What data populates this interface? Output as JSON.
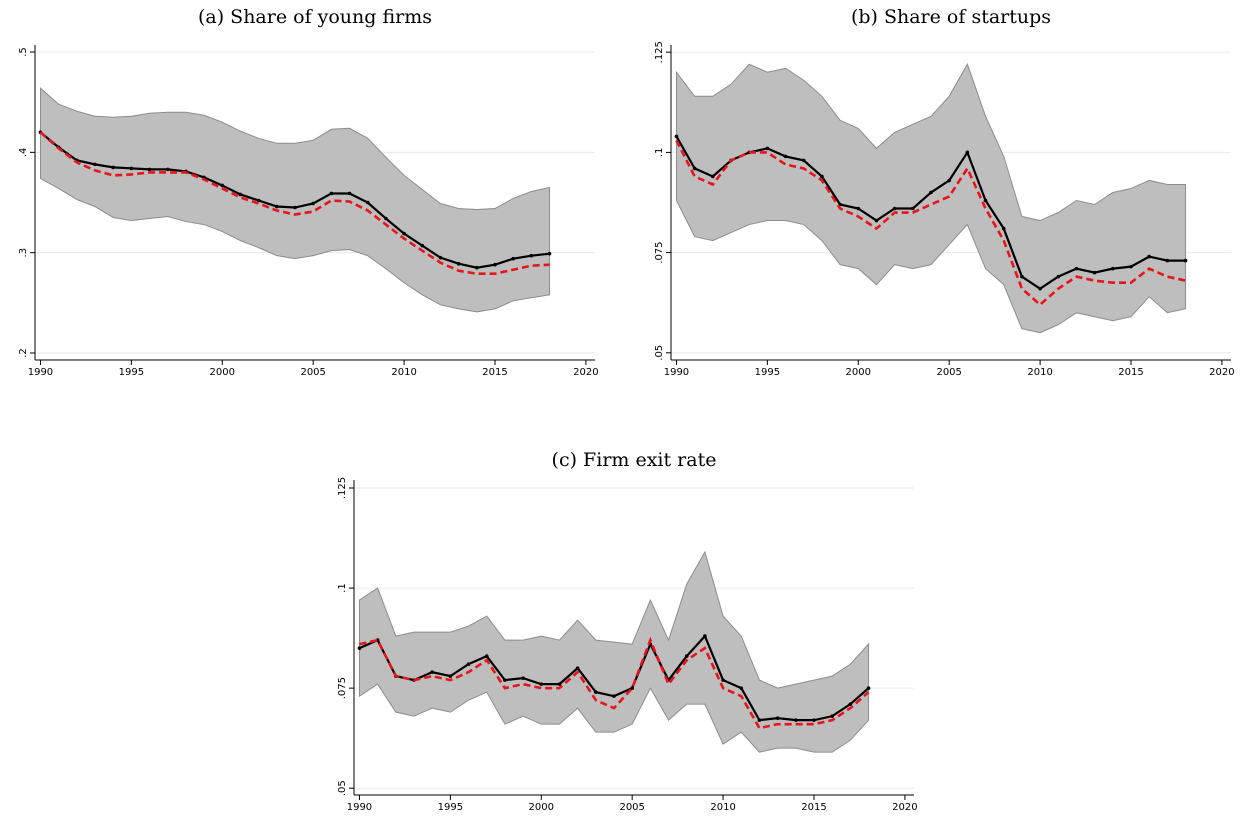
{
  "chart_data": [
    {
      "type": "line",
      "title": "(a) Share of young firms",
      "x": [
        1990,
        1991,
        1992,
        1993,
        1994,
        1995,
        1996,
        1997,
        1998,
        1999,
        2000,
        2001,
        2002,
        2003,
        2004,
        2005,
        2006,
        2007,
        2008,
        2009,
        2010,
        2011,
        2012,
        2013,
        2014,
        2015,
        2016,
        2017,
        2018
      ],
      "band": {
        "color": "#bebebe",
        "edge": "#8c8c8c",
        "upper": [
          0.464,
          0.448,
          0.441,
          0.436,
          0.435,
          0.436,
          0.439,
          0.44,
          0.44,
          0.437,
          0.43,
          0.421,
          0.414,
          0.409,
          0.409,
          0.412,
          0.423,
          0.424,
          0.414,
          0.395,
          0.377,
          0.363,
          0.349,
          0.344,
          0.343,
          0.344,
          0.354,
          0.361,
          0.365
        ],
        "lower": [
          0.374,
          0.364,
          0.353,
          0.346,
          0.335,
          0.332,
          0.334,
          0.336,
          0.331,
          0.328,
          0.321,
          0.312,
          0.305,
          0.297,
          0.294,
          0.297,
          0.302,
          0.303,
          0.297,
          0.284,
          0.27,
          0.258,
          0.248,
          0.244,
          0.241,
          0.244,
          0.252,
          0.255,
          0.258
        ]
      },
      "series": [
        {
          "color": "#000000",
          "markers": true,
          "values": [
            0.42,
            0.405,
            0.392,
            0.388,
            0.385,
            0.384,
            0.383,
            0.383,
            0.381,
            0.375,
            0.367,
            0.358,
            0.352,
            0.346,
            0.345,
            0.349,
            0.359,
            0.359,
            0.35,
            0.334,
            0.319,
            0.307,
            0.295,
            0.289,
            0.285,
            0.288,
            0.294,
            0.297,
            0.299
          ]
        },
        {
          "color": "#e8141b",
          "dashed": true,
          "values": [
            0.42,
            0.404,
            0.39,
            0.382,
            0.377,
            0.378,
            0.38,
            0.38,
            0.38,
            0.373,
            0.364,
            0.355,
            0.349,
            0.342,
            0.338,
            0.341,
            0.352,
            0.351,
            0.342,
            0.328,
            0.314,
            0.302,
            0.29,
            0.282,
            0.279,
            0.279,
            0.283,
            0.287,
            0.288
          ]
        }
      ],
      "xlim": [
        1989.7,
        2020.5
      ],
      "xticks": [
        1990,
        1995,
        2000,
        2005,
        2010,
        2015,
        2020
      ],
      "ylim": [
        0.193,
        0.507
      ],
      "yticks": [
        {
          "value": 0.2,
          "label": ".2"
        },
        {
          "value": 0.3,
          "label": ".3"
        },
        {
          "value": 0.4,
          "label": ".4"
        },
        {
          "value": 0.5,
          "label": ".5"
        }
      ],
      "grid": true
    },
    {
      "type": "line",
      "title": "(b) Share of startups",
      "x": [
        1990,
        1991,
        1992,
        1993,
        1994,
        1995,
        1996,
        1997,
        1998,
        1999,
        2000,
        2001,
        2002,
        2003,
        2004,
        2005,
        2006,
        2007,
        2008,
        2009,
        2010,
        2011,
        2012,
        2013,
        2014,
        2015,
        2016,
        2017,
        2018
      ],
      "band": {
        "color": "#bebebe",
        "edge": "#8c8c8c",
        "upper": [
          0.12,
          0.114,
          0.114,
          0.117,
          0.122,
          0.12,
          0.121,
          0.118,
          0.114,
          0.108,
          0.106,
          0.101,
          0.105,
          0.107,
          0.109,
          0.114,
          0.122,
          0.109,
          0.099,
          0.084,
          0.083,
          0.085,
          0.088,
          0.087,
          0.09,
          0.091,
          0.093,
          0.092,
          0.092
        ],
        "lower": [
          0.088,
          0.079,
          0.078,
          0.08,
          0.082,
          0.083,
          0.083,
          0.082,
          0.078,
          0.072,
          0.071,
          0.067,
          0.072,
          0.071,
          0.072,
          0.077,
          0.082,
          0.071,
          0.067,
          0.056,
          0.055,
          0.057,
          0.06,
          0.059,
          0.058,
          0.059,
          0.064,
          0.06,
          0.061
        ]
      },
      "series": [
        {
          "color": "#000000",
          "markers": true,
          "values": [
            0.104,
            0.096,
            0.094,
            0.098,
            0.1,
            0.101,
            0.099,
            0.098,
            0.094,
            0.087,
            0.086,
            0.083,
            0.086,
            0.086,
            0.09,
            0.093,
            0.1,
            0.088,
            0.081,
            0.069,
            0.066,
            0.069,
            0.071,
            0.07,
            0.071,
            0.0715,
            0.074,
            0.073,
            0.073
          ]
        },
        {
          "color": "#e8141b",
          "dashed": true,
          "values": [
            0.103,
            0.094,
            0.092,
            0.098,
            0.1,
            0.1,
            0.097,
            0.096,
            0.093,
            0.086,
            0.084,
            0.081,
            0.085,
            0.085,
            0.087,
            0.089,
            0.096,
            0.086,
            0.078,
            0.066,
            0.062,
            0.066,
            0.069,
            0.068,
            0.0675,
            0.0675,
            0.071,
            0.069,
            0.068
          ]
        }
      ],
      "xlim": [
        1989.7,
        2020.5
      ],
      "xticks": [
        1990,
        1995,
        2000,
        2005,
        2010,
        2015,
        2020
      ],
      "ylim": [
        0.0482,
        0.1268
      ],
      "yticks": [
        {
          "value": 0.05,
          "label": ".05"
        },
        {
          "value": 0.075,
          "label": ".075"
        },
        {
          "value": 0.1,
          "label": ".1"
        },
        {
          "value": 0.125,
          "label": ".125"
        }
      ],
      "grid": true
    },
    {
      "type": "line",
      "title": "(c) Firm exit rate",
      "x": [
        1990,
        1991,
        1992,
        1993,
        1994,
        1995,
        1996,
        1997,
        1998,
        1999,
        2000,
        2001,
        2002,
        2003,
        2004,
        2005,
        2006,
        2007,
        2008,
        2009,
        2010,
        2011,
        2012,
        2013,
        2014,
        2015,
        2016,
        2017,
        2018
      ],
      "band": {
        "color": "#bebebe",
        "edge": "#8c8c8c",
        "upper": [
          0.097,
          0.1,
          0.088,
          0.089,
          0.089,
          0.089,
          0.0905,
          0.093,
          0.087,
          0.087,
          0.088,
          0.087,
          0.092,
          0.087,
          0.0865,
          0.086,
          0.097,
          0.087,
          0.101,
          0.109,
          0.093,
          0.088,
          0.077,
          0.075,
          0.076,
          0.077,
          0.078,
          0.081,
          0.086
        ],
        "lower": [
          0.073,
          0.076,
          0.069,
          0.068,
          0.07,
          0.069,
          0.072,
          0.074,
          0.066,
          0.068,
          0.066,
          0.066,
          0.07,
          0.064,
          0.064,
          0.066,
          0.075,
          0.067,
          0.071,
          0.071,
          0.061,
          0.064,
          0.059,
          0.06,
          0.06,
          0.059,
          0.059,
          0.062,
          0.067
        ]
      },
      "series": [
        {
          "color": "#000000",
          "markers": true,
          "values": [
            0.085,
            0.087,
            0.078,
            0.077,
            0.079,
            0.078,
            0.081,
            0.083,
            0.077,
            0.0775,
            0.076,
            0.076,
            0.08,
            0.074,
            0.073,
            0.075,
            0.086,
            0.077,
            0.083,
            0.088,
            0.077,
            0.075,
            0.067,
            0.0675,
            0.067,
            0.067,
            0.068,
            0.071,
            0.075
          ]
        },
        {
          "color": "#e8141b",
          "dashed": true,
          "values": [
            0.086,
            0.087,
            0.078,
            0.077,
            0.078,
            0.077,
            0.079,
            0.082,
            0.075,
            0.076,
            0.075,
            0.075,
            0.079,
            0.072,
            0.07,
            0.075,
            0.087,
            0.076,
            0.082,
            0.085,
            0.075,
            0.073,
            0.065,
            0.066,
            0.066,
            0.066,
            0.067,
            0.07,
            0.074
          ]
        }
      ],
      "xlim": [
        1989.7,
        2020.5
      ],
      "xticks": [
        1990,
        1995,
        2000,
        2005,
        2010,
        2015,
        2020
      ],
      "ylim": [
        0.0483,
        0.127
      ],
      "yticks": [
        {
          "value": 0.05,
          "label": ".05"
        },
        {
          "value": 0.075,
          "label": ".075"
        },
        {
          "value": 0.1,
          "label": ".1"
        },
        {
          "value": 0.125,
          "label": ".125"
        }
      ],
      "grid": true
    }
  ]
}
